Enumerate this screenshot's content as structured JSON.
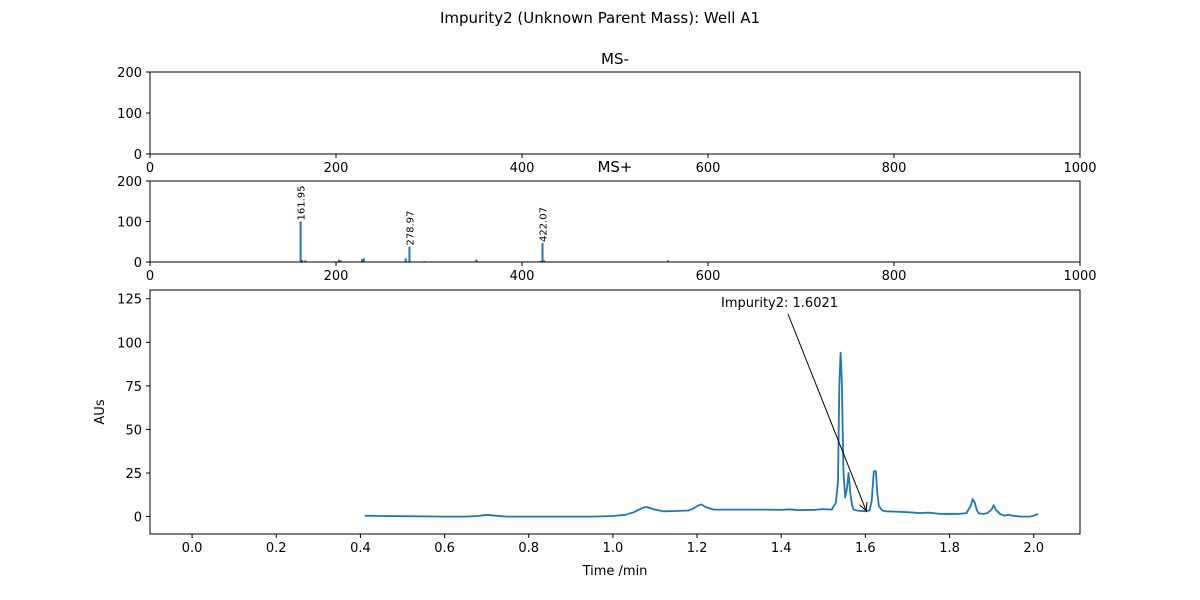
{
  "figure": {
    "suptitle": "Impurity2 (Unknown Parent Mass): Well A1"
  },
  "colors": {
    "series": "#1f77b4",
    "axes": "#000000"
  },
  "chart_data": [
    {
      "id": "ms_neg",
      "type": "bar",
      "title": "MS-",
      "xlim": [
        0,
        1000
      ],
      "ylim": [
        0,
        200
      ],
      "xticks": [
        0,
        200,
        400,
        600,
        800,
        1000
      ],
      "yticks": [
        0,
        100,
        200
      ],
      "peaks": [],
      "labels": []
    },
    {
      "id": "ms_pos",
      "type": "bar",
      "title": "MS+",
      "xlim": [
        0,
        1000
      ],
      "ylim": [
        0,
        200
      ],
      "xticks": [
        0,
        200,
        400,
        600,
        800,
        1000
      ],
      "yticks": [
        0,
        100,
        200
      ],
      "peaks": [
        {
          "mz": 161.95,
          "intensity": 100
        },
        {
          "mz": 163.5,
          "intensity": 5
        },
        {
          "mz": 167.0,
          "intensity": 4
        },
        {
          "mz": 203.0,
          "intensity": 6
        },
        {
          "mz": 205.0,
          "intensity": 4
        },
        {
          "mz": 228.0,
          "intensity": 7
        },
        {
          "mz": 230.0,
          "intensity": 9
        },
        {
          "mz": 275.0,
          "intensity": 9
        },
        {
          "mz": 278.97,
          "intensity": 38
        },
        {
          "mz": 295.0,
          "intensity": 2
        },
        {
          "mz": 351.0,
          "intensity": 6
        },
        {
          "mz": 420.0,
          "intensity": 3
        },
        {
          "mz": 422.07,
          "intensity": 47
        },
        {
          "mz": 424.0,
          "intensity": 4
        },
        {
          "mz": 557.0,
          "intensity": 4
        }
      ],
      "labels": [
        {
          "mz": 161.95,
          "intensity": 100,
          "text": "161.95"
        },
        {
          "mz": 278.97,
          "intensity": 38,
          "text": "278.97"
        },
        {
          "mz": 422.07,
          "intensity": 47,
          "text": "422.07"
        }
      ]
    },
    {
      "id": "uv",
      "type": "line",
      "xlabel": "Time /min",
      "ylabel": "AUs",
      "xlim": [
        -0.1,
        2.11
      ],
      "ylim": [
        -10,
        130
      ],
      "xticks": [
        0.0,
        0.2,
        0.4,
        0.6,
        0.8,
        1.0,
        1.2,
        1.4,
        1.6,
        1.8,
        2.0
      ],
      "yticks": [
        0,
        25,
        50,
        75,
        100,
        125
      ],
      "x": [
        0.41,
        0.45,
        0.5,
        0.55,
        0.6,
        0.65,
        0.68,
        0.7,
        0.72,
        0.75,
        0.8,
        0.85,
        0.9,
        0.95,
        1.0,
        1.03,
        1.05,
        1.07,
        1.08,
        1.1,
        1.12,
        1.15,
        1.18,
        1.19,
        1.2,
        1.21,
        1.22,
        1.24,
        1.28,
        1.32,
        1.36,
        1.4,
        1.42,
        1.44,
        1.48,
        1.5,
        1.52,
        1.53,
        1.535,
        1.538,
        1.541,
        1.544,
        1.548,
        1.552,
        1.556,
        1.56,
        1.564,
        1.568,
        1.572,
        1.58,
        1.59,
        1.6,
        1.61,
        1.615,
        1.62,
        1.625,
        1.628,
        1.632,
        1.64,
        1.65,
        1.7,
        1.73,
        1.75,
        1.78,
        1.8,
        1.82,
        1.84,
        1.85,
        1.855,
        1.86,
        1.865,
        1.87,
        1.88,
        1.89,
        1.9,
        1.905,
        1.91,
        1.92,
        1.93,
        1.94,
        1.95,
        1.97,
        1.99,
        2.0,
        2.01
      ],
      "y": [
        0.5,
        0.3,
        0.2,
        0.1,
        0.0,
        0.0,
        0.3,
        1.0,
        0.5,
        0.0,
        0.0,
        0.0,
        0.0,
        0.0,
        0.3,
        1.0,
        2.5,
        5.0,
        5.5,
        4.0,
        3.0,
        3.2,
        3.5,
        4.5,
        6.0,
        7.0,
        5.5,
        4.0,
        4.0,
        4.0,
        4.0,
        3.8,
        4.2,
        3.7,
        3.9,
        4.3,
        4.0,
        8.0,
        20.0,
        75.0,
        94.0,
        78.0,
        25.0,
        11.0,
        16.0,
        25.0,
        14.0,
        7.0,
        4.0,
        3.5,
        3.2,
        3.0,
        3.5,
        9.0,
        26.0,
        26.0,
        14.0,
        6.0,
        3.5,
        3.0,
        2.5,
        2.0,
        2.3,
        1.5,
        1.6,
        1.5,
        2.0,
        6.0,
        10.0,
        8.0,
        3.5,
        1.8,
        1.5,
        2.0,
        4.0,
        6.5,
        4.0,
        1.5,
        0.5,
        1.0,
        0.5,
        0.0,
        0.0,
        0.5,
        1.5
      ],
      "annotation": {
        "text": "Impurity2: 1.6021",
        "x": 1.6021,
        "y": 3.2
      }
    }
  ]
}
